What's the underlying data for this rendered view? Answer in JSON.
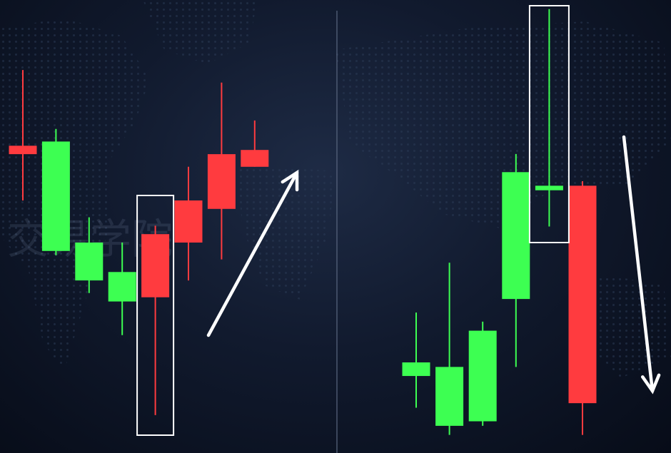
{
  "colors": {
    "bull": "#3dff52",
    "bear": "#ff3b3f",
    "highlight": "#ffffff",
    "arrow": "#ffffff",
    "divider": "#5a6780"
  },
  "watermark_text": "交易学院",
  "chart_data": [
    {
      "type": "candlestick",
      "title": "",
      "pattern": "bullish-reversal",
      "highlighted_candle_index": 4,
      "trend_arrow": "up",
      "ylim": [
        0,
        100
      ],
      "candles": [
        {
          "open": 73,
          "close": 71,
          "high": 91,
          "low": 60
        },
        {
          "open": 48,
          "close": 74,
          "high": 77,
          "low": 47
        },
        {
          "open": 41,
          "close": 50,
          "high": 56,
          "low": 38
        },
        {
          "open": 36,
          "close": 43,
          "high": 50,
          "low": 28
        },
        {
          "open": 52,
          "close": 37,
          "high": 54,
          "low": 9
        },
        {
          "open": 60,
          "close": 50,
          "high": 68,
          "low": 41
        },
        {
          "open": 71,
          "close": 58,
          "high": 88,
          "low": 46
        },
        {
          "open": 72,
          "close": 68,
          "high": 79,
          "low": 68
        }
      ]
    },
    {
      "type": "candlestick",
      "title": "",
      "pattern": "bearish-reversal",
      "highlighted_candle_index": 4,
      "trend_arrow": "down",
      "ylim": [
        0,
        100
      ],
      "candles": [
        {
          "open": 17,
          "close": 20,
          "high": 31,
          "low": 10
        },
        {
          "open": 6,
          "close": 19,
          "high": 42,
          "low": 4
        },
        {
          "open": 7,
          "close": 27,
          "high": 29,
          "low": 6
        },
        {
          "open": 34,
          "close": 62,
          "high": 66,
          "low": 19
        },
        {
          "open": 58,
          "close": 59,
          "high": 98,
          "low": 50
        },
        {
          "open": 59,
          "close": 11,
          "high": 60,
          "low": 4
        }
      ]
    }
  ]
}
